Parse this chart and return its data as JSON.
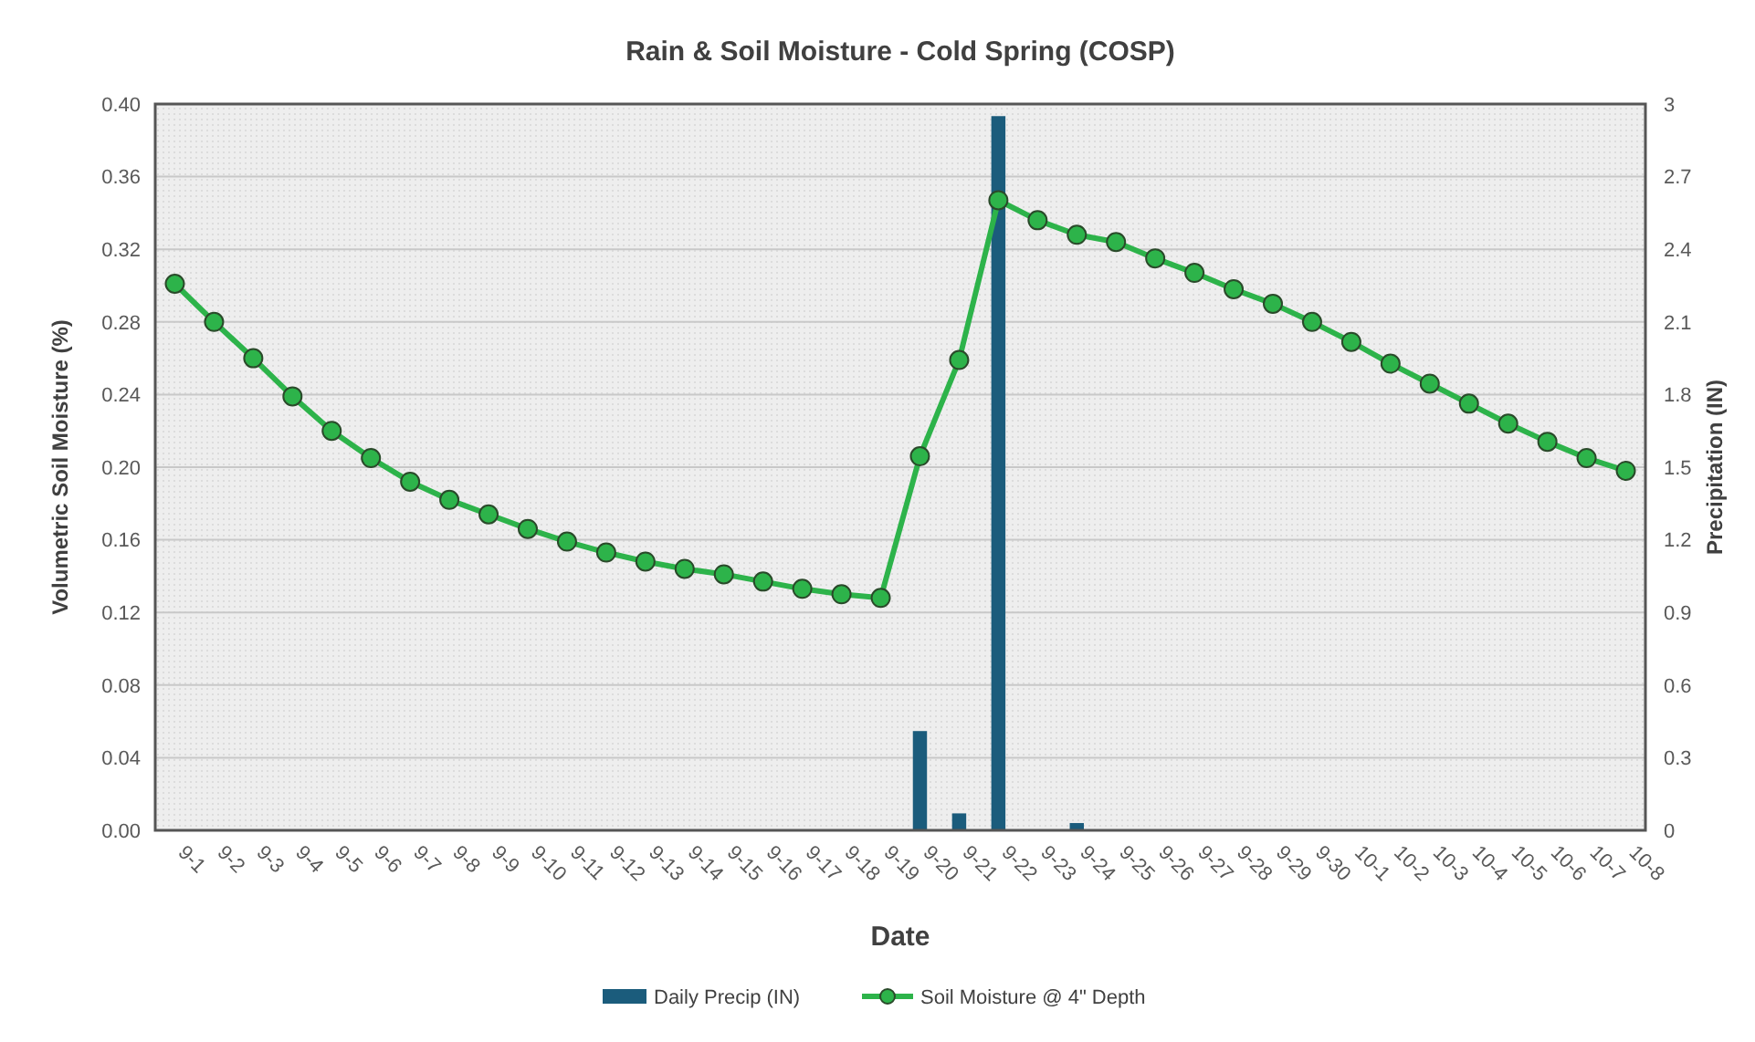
{
  "chart_data": {
    "type": "bar",
    "title": "Rain & Soil Moisture - Cold Spring (COSP)",
    "xlabel": "Date",
    "ylabel": "Volumetric Soil Moisture (%)",
    "y2label": "Precipitation (IN)",
    "categories": [
      "9-1",
      "9-2",
      "9-3",
      "9-4",
      "9-5",
      "9-6",
      "9-7",
      "9-8",
      "9-9",
      "9-10",
      "9-11",
      "9-12",
      "9-13",
      "9-14",
      "9-15",
      "9-16",
      "9-17",
      "9-18",
      "9-19",
      "9-20",
      "9-21",
      "9-22",
      "9-23",
      "9-24",
      "9-25",
      "9-26",
      "9-27",
      "9-28",
      "9-29",
      "9-30",
      "10-1",
      "10-2",
      "10-3",
      "10-4",
      "10-5",
      "10-6",
      "10-7",
      "10-8"
    ],
    "series": [
      {
        "name": "Daily Precip (IN)",
        "axis": "y2",
        "color": "#1b5c7c",
        "values": [
          0,
          0,
          0,
          0,
          0,
          0,
          0,
          0,
          0,
          0,
          0,
          0,
          0,
          0,
          0,
          0,
          0,
          0,
          0,
          0.41,
          0.07,
          2.95,
          0,
          0.03,
          0,
          0,
          0,
          0,
          0,
          0,
          0,
          0,
          0,
          0,
          0,
          0,
          0,
          0
        ]
      },
      {
        "name": "Soil Moisture @ 4\" Depth",
        "type": "line",
        "color": "#2db34a",
        "values": [
          0.301,
          0.28,
          0.26,
          0.239,
          0.22,
          0.205,
          0.192,
          0.182,
          0.174,
          0.166,
          0.159,
          0.153,
          0.148,
          0.144,
          0.141,
          0.137,
          0.133,
          0.13,
          0.128,
          0.206,
          0.259,
          0.347,
          0.336,
          0.328,
          0.324,
          0.315,
          0.307,
          0.298,
          0.29,
          0.28,
          0.269,
          0.257,
          0.246,
          0.235,
          0.224,
          0.214,
          0.205,
          0.198
        ]
      }
    ],
    "ylim": [
      0,
      0.4
    ],
    "yticks": [
      {
        "value": 0,
        "label": "0.00"
      },
      {
        "value": 0.04,
        "label": "0.04"
      },
      {
        "value": 0.08,
        "label": "0.08"
      },
      {
        "value": 0.12,
        "label": "0.12"
      },
      {
        "value": 0.16,
        "label": "0.16"
      },
      {
        "value": 0.2,
        "label": "0.20"
      },
      {
        "value": 0.24,
        "label": "0.24"
      },
      {
        "value": 0.28,
        "label": "0.28"
      },
      {
        "value": 0.32,
        "label": "0.32"
      },
      {
        "value": 0.36,
        "label": "0.36"
      },
      {
        "value": 0.4,
        "label": "0.40"
      }
    ],
    "y2lim": [
      0,
      3
    ],
    "y2ticks": [
      0,
      0.3,
      0.6,
      0.9,
      1.2,
      1.5,
      1.8,
      2.1,
      2.4,
      2.7,
      3
    ],
    "grid": "y",
    "legend": "bottom",
    "marker": "circle",
    "line_style": "solid"
  }
}
